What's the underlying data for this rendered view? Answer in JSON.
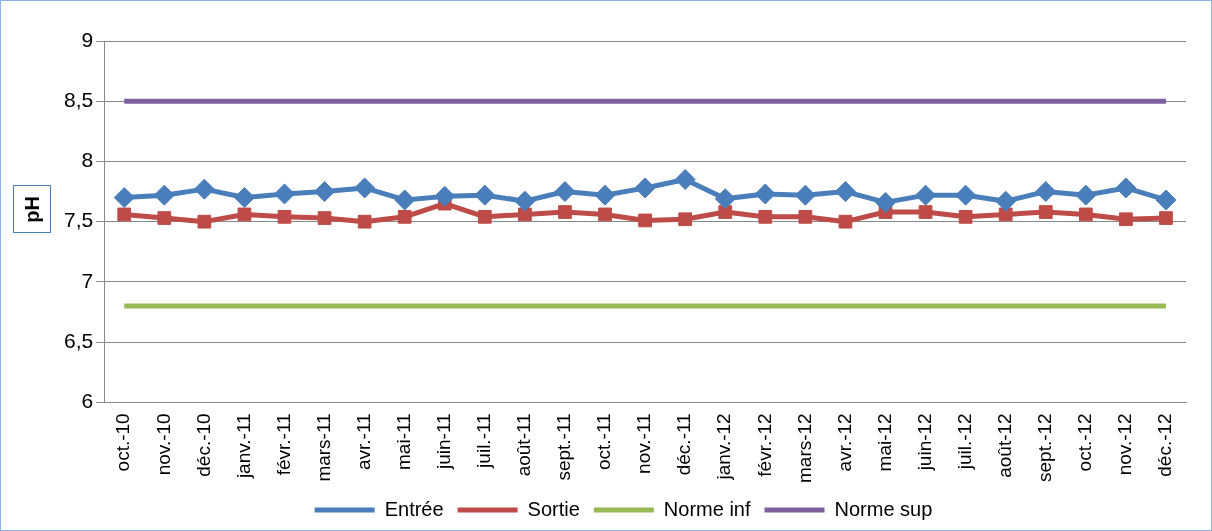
{
  "chart_data": {
    "type": "line",
    "ylabel": "pH",
    "categories": [
      "oct.-10",
      "nov.-10",
      "déc.-10",
      "janv.-11",
      "févr.-11",
      "mars-11",
      "avr.-11",
      "mai-11",
      "juin-11",
      "juil.-11",
      "août-11",
      "sept.-11",
      "oct.-11",
      "nov.-11",
      "déc.-11",
      "janv.-12",
      "févr.-12",
      "mars-12",
      "avr.-12",
      "mai-12",
      "juin-12",
      "juil.-12",
      "août-12",
      "sept.-12",
      "oct.-12",
      "nov.-12",
      "déc.-12"
    ],
    "series": [
      {
        "name": "Entrée",
        "color": "#4a7ebb",
        "marker": "diamond",
        "values": [
          7.7,
          7.72,
          7.77,
          7.7,
          7.73,
          7.75,
          7.78,
          7.68,
          7.71,
          7.72,
          7.67,
          7.75,
          7.72,
          7.78,
          7.85,
          7.69,
          7.73,
          7.72,
          7.75,
          7.66,
          7.72,
          7.72,
          7.67,
          7.75,
          7.72,
          7.78,
          7.68
        ]
      },
      {
        "name": "Sortie",
        "color": "#be4b48",
        "marker": "square",
        "values": [
          7.56,
          7.53,
          7.5,
          7.56,
          7.54,
          7.53,
          7.5,
          7.54,
          7.65,
          7.54,
          7.56,
          7.58,
          7.56,
          7.51,
          7.52,
          7.58,
          7.54,
          7.54,
          7.5,
          7.58,
          7.58,
          7.54,
          7.56,
          7.58,
          7.56,
          7.52,
          7.53
        ]
      },
      {
        "name": "Norme inf",
        "color": "#98b954",
        "marker": "none",
        "values": [
          6.8,
          6.8,
          6.8,
          6.8,
          6.8,
          6.8,
          6.8,
          6.8,
          6.8,
          6.8,
          6.8,
          6.8,
          6.8,
          6.8,
          6.8,
          6.8,
          6.8,
          6.8,
          6.8,
          6.8,
          6.8,
          6.8,
          6.8,
          6.8,
          6.8,
          6.8,
          6.8
        ]
      },
      {
        "name": "Norme sup",
        "color": "#7d60a0",
        "marker": "none",
        "values": [
          8.5,
          8.5,
          8.5,
          8.5,
          8.5,
          8.5,
          8.5,
          8.5,
          8.5,
          8.5,
          8.5,
          8.5,
          8.5,
          8.5,
          8.5,
          8.5,
          8.5,
          8.5,
          8.5,
          8.5,
          8.5,
          8.5,
          8.5,
          8.5,
          8.5,
          8.5,
          8.5
        ]
      }
    ],
    "ylim": [
      6,
      9
    ],
    "yticks": [
      {
        "value": 6,
        "label": "6"
      },
      {
        "value": 6.5,
        "label": "6,5"
      },
      {
        "value": 7,
        "label": "7"
      },
      {
        "value": 7.5,
        "label": "7,5"
      },
      {
        "value": 8,
        "label": "8"
      },
      {
        "value": 8.5,
        "label": "8,5"
      },
      {
        "value": 9,
        "label": "9"
      }
    ],
    "grid": "y",
    "legend": "bottom"
  }
}
